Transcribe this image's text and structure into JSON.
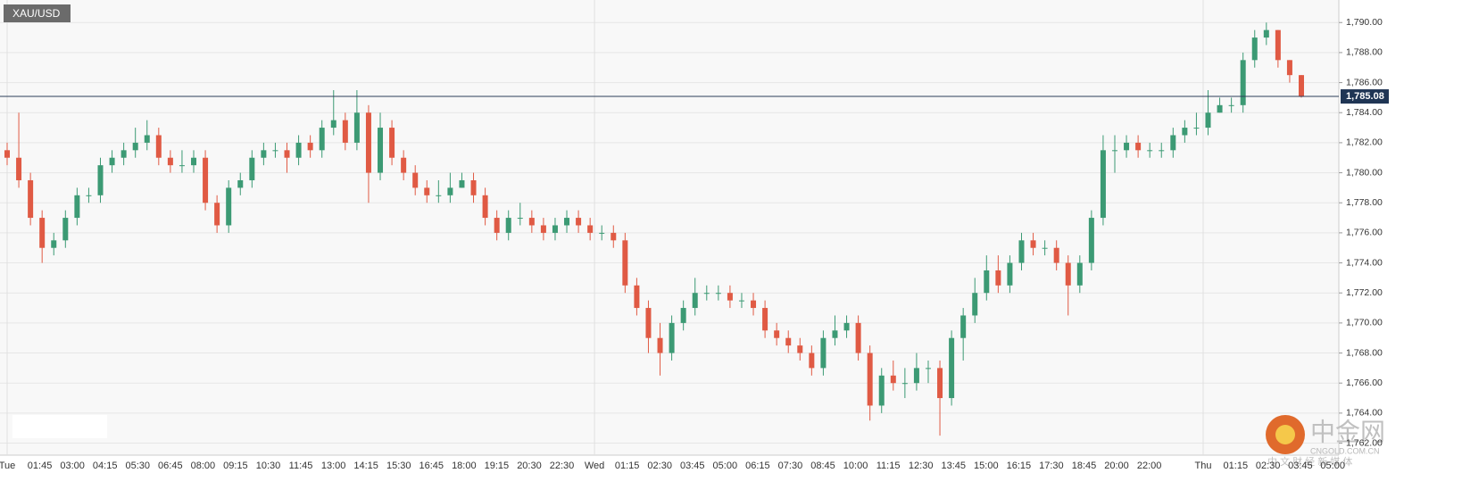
{
  "chart_data": {
    "type": "candlestick",
    "title": "XAU/USD",
    "ylim": [
      1761.2,
      1791.5
    ],
    "yticks": [
      {
        "value": 1762,
        "label": "1,762.00"
      },
      {
        "value": 1764,
        "label": "1,764.00"
      },
      {
        "value": 1766,
        "label": "1,766.00"
      },
      {
        "value": 1768,
        "label": "1,768.00"
      },
      {
        "value": 1770,
        "label": "1,770.00"
      },
      {
        "value": 1772,
        "label": "1,772.00"
      },
      {
        "value": 1774,
        "label": "1,774.00"
      },
      {
        "value": 1776,
        "label": "1,776.00"
      },
      {
        "value": 1778,
        "label": "1,778.00"
      },
      {
        "value": 1780,
        "label": "1,780.00"
      },
      {
        "value": 1782,
        "label": "1,782.00"
      },
      {
        "value": 1784,
        "label": "1,784.00"
      },
      {
        "value": 1786,
        "label": "1,786.00"
      },
      {
        "value": 1788,
        "label": "1,788.00"
      },
      {
        "value": 1790,
        "label": "1,790.00"
      }
    ],
    "xticks": [
      "Tue",
      "01:45",
      "03:00",
      "04:15",
      "05:30",
      "06:45",
      "08:00",
      "09:15",
      "10:30",
      "11:45",
      "13:00",
      "14:15",
      "15:30",
      "16:45",
      "18:00",
      "19:15",
      "20:30",
      "22:30",
      "Wed",
      "01:15",
      "02:30",
      "03:45",
      "05:00",
      "06:15",
      "07:30",
      "08:45",
      "10:00",
      "11:15",
      "12:30",
      "13:45",
      "15:00",
      "16:15",
      "17:30",
      "18:45",
      "20:00",
      "22:00",
      "Thu",
      "01:15",
      "02:30",
      "03:45",
      "05:00"
    ],
    "last_price": {
      "value": 1785.08,
      "label": "1,785.08"
    },
    "up_color": "#3c9a74",
    "down_color": "#e05a44",
    "grid": true,
    "watermark": {
      "logo": "中金网",
      "site": "CNGOLD.COM.CN",
      "slogan": "中 文 财 经 新 媒 体"
    },
    "candles": [
      [
        1781.5,
        1782,
        1780.5,
        1781
      ],
      [
        1781,
        1784,
        1779,
        1779.5
      ],
      [
        1779.5,
        1780,
        1776.5,
        1777
      ],
      [
        1777,
        1777.5,
        1774,
        1775
      ],
      [
        1775,
        1776,
        1774.5,
        1775.5
      ],
      [
        1775.5,
        1777.5,
        1775,
        1777
      ],
      [
        1777,
        1779,
        1776.5,
        1778.5
      ],
      [
        1778.5,
        1779,
        1778,
        1778.5
      ],
      [
        1778.5,
        1781,
        1778,
        1780.5
      ],
      [
        1780.5,
        1781.5,
        1780,
        1781
      ],
      [
        1781,
        1782,
        1780.5,
        1781.5
      ],
      [
        1781.5,
        1783,
        1781,
        1782
      ],
      [
        1782,
        1783.5,
        1781.5,
        1782.5
      ],
      [
        1782.5,
        1783,
        1780.5,
        1781
      ],
      [
        1781,
        1781.5,
        1780,
        1780.5
      ],
      [
        1780.5,
        1781.5,
        1780,
        1780.5
      ],
      [
        1780.5,
        1781.5,
        1780,
        1781
      ],
      [
        1781,
        1781.5,
        1777.5,
        1778
      ],
      [
        1778,
        1778.5,
        1776,
        1776.5
      ],
      [
        1776.5,
        1779.5,
        1776,
        1779
      ],
      [
        1779,
        1780,
        1778.5,
        1779.5
      ],
      [
        1779.5,
        1781.5,
        1779,
        1781
      ],
      [
        1781,
        1782,
        1780.5,
        1781.5
      ],
      [
        1781.5,
        1782,
        1781,
        1781.5
      ],
      [
        1781.5,
        1782,
        1780,
        1781
      ],
      [
        1781,
        1782.5,
        1780.5,
        1782
      ],
      [
        1782,
        1782.5,
        1781,
        1781.5
      ],
      [
        1781.5,
        1783.5,
        1781,
        1783
      ],
      [
        1783,
        1785.5,
        1782.5,
        1783.5
      ],
      [
        1783.5,
        1784,
        1781.5,
        1782
      ],
      [
        1782,
        1785.5,
        1781.5,
        1784
      ],
      [
        1784,
        1784.5,
        1778,
        1780
      ],
      [
        1780,
        1784,
        1779.5,
        1783
      ],
      [
        1783,
        1783.5,
        1780.5,
        1781
      ],
      [
        1781,
        1781.5,
        1779.5,
        1780
      ],
      [
        1780,
        1780.5,
        1778.5,
        1779
      ],
      [
        1779,
        1779.5,
        1778,
        1778.5
      ],
      [
        1778.5,
        1779.5,
        1778,
        1778.5
      ],
      [
        1778.5,
        1780,
        1778,
        1779
      ],
      [
        1779,
        1780,
        1779,
        1779.5
      ],
      [
        1779.5,
        1780,
        1778,
        1778.5
      ],
      [
        1778.5,
        1779,
        1776.5,
        1777
      ],
      [
        1777,
        1777.5,
        1775.5,
        1776
      ],
      [
        1776,
        1777.5,
        1775.5,
        1777
      ],
      [
        1777,
        1778,
        1776.5,
        1777
      ],
      [
        1777,
        1777.5,
        1776,
        1776.5
      ],
      [
        1776.5,
        1777,
        1775.5,
        1776
      ],
      [
        1776,
        1777,
        1775.5,
        1776.5
      ],
      [
        1776.5,
        1777.5,
        1776,
        1777
      ],
      [
        1777,
        1777.5,
        1776,
        1776.5
      ],
      [
        1776.5,
        1777,
        1775.5,
        1776
      ],
      [
        1776,
        1776.5,
        1775.5,
        1776
      ],
      [
        1776,
        1776.5,
        1775,
        1775.5
      ],
      [
        1775.5,
        1776,
        1772,
        1772.5
      ],
      [
        1772.5,
        1773,
        1770.5,
        1771
      ],
      [
        1771,
        1771.5,
        1768,
        1769
      ],
      [
        1769,
        1770,
        1766.5,
        1768
      ],
      [
        1768,
        1770.5,
        1767.5,
        1770
      ],
      [
        1770,
        1771.5,
        1769.5,
        1771
      ],
      [
        1771,
        1773,
        1770.5,
        1772
      ],
      [
        1772,
        1772.5,
        1771.5,
        1772
      ],
      [
        1772,
        1772.5,
        1771.5,
        1772
      ],
      [
        1772,
        1772.5,
        1771,
        1771.5
      ],
      [
        1771.5,
        1772,
        1771,
        1771.5
      ],
      [
        1771.5,
        1772,
        1770.5,
        1771
      ],
      [
        1771,
        1771.5,
        1769,
        1769.5
      ],
      [
        1769.5,
        1770,
        1768.5,
        1769
      ],
      [
        1769,
        1769.5,
        1768,
        1768.5
      ],
      [
        1768.5,
        1769,
        1767.5,
        1768
      ],
      [
        1768,
        1768.5,
        1766.5,
        1767
      ],
      [
        1767,
        1769.5,
        1766.5,
        1769
      ],
      [
        1769,
        1770.5,
        1768.5,
        1769.5
      ],
      [
        1769.5,
        1770.5,
        1769,
        1770
      ],
      [
        1770,
        1770.5,
        1767.5,
        1768
      ],
      [
        1768,
        1768.5,
        1763.5,
        1764.5
      ],
      [
        1764.5,
        1767,
        1764,
        1766.5
      ],
      [
        1766.5,
        1767.5,
        1765.5,
        1766
      ],
      [
        1766,
        1767,
        1765,
        1766
      ],
      [
        1766,
        1768,
        1765.5,
        1767
      ],
      [
        1767,
        1767.5,
        1766,
        1767
      ],
      [
        1767,
        1767.5,
        1762.5,
        1765
      ],
      [
        1765,
        1769.5,
        1764.5,
        1769
      ],
      [
        1769,
        1771,
        1767.5,
        1770.5
      ],
      [
        1770.5,
        1773,
        1770,
        1772
      ],
      [
        1772,
        1774.5,
        1771.5,
        1773.5
      ],
      [
        1773.5,
        1774.5,
        1772,
        1772.5
      ],
      [
        1772.5,
        1774.5,
        1772,
        1774
      ],
      [
        1774,
        1776,
        1773.5,
        1775.5
      ],
      [
        1775.5,
        1776,
        1774.5,
        1775
      ],
      [
        1775,
        1775.5,
        1774.5,
        1775
      ],
      [
        1775,
        1775.5,
        1773.5,
        1774
      ],
      [
        1774,
        1774.5,
        1770.5,
        1772.5
      ],
      [
        1772.5,
        1774.5,
        1772,
        1774
      ],
      [
        1774,
        1777.5,
        1773.5,
        1777
      ],
      [
        1777,
        1782.5,
        1776.5,
        1781.5
      ],
      [
        1781.5,
        1782.5,
        1780,
        1781.5
      ],
      [
        1781.5,
        1782.5,
        1781,
        1782
      ],
      [
        1782,
        1782.5,
        1781,
        1781.5
      ],
      [
        1781.5,
        1782,
        1781,
        1781.5
      ],
      [
        1781.5,
        1782,
        1781,
        1781.5
      ],
      [
        1781.5,
        1783,
        1781,
        1782.5
      ],
      [
        1782.5,
        1783.5,
        1782,
        1783
      ],
      [
        1783,
        1784,
        1782.5,
        1783
      ],
      [
        1783,
        1785.5,
        1782.5,
        1784
      ],
      [
        1784,
        1785,
        1784,
        1784.5
      ],
      [
        1784.5,
        1785,
        1784,
        1784.5
      ],
      [
        1784.5,
        1788,
        1784,
        1787.5
      ],
      [
        1787.5,
        1789.5,
        1787,
        1789
      ],
      [
        1789,
        1790,
        1788.5,
        1789.5
      ],
      [
        1789.5,
        1789.5,
        1787,
        1787.5
      ],
      [
        1787.5,
        1787.5,
        1786,
        1786.5
      ],
      [
        1786.5,
        1786.5,
        1785,
        1785.08
      ]
    ]
  }
}
